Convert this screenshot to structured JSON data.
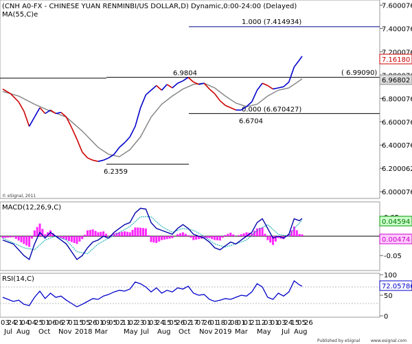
{
  "chart_data": [
    {
      "type": "line",
      "panel": "price",
      "title": "(CNH A0-FX - CHINESE YUAN RENMINBI/US DOLLAR,D) Dynamic,0:00-24:00 (Delayed)",
      "ma_label": "MA(55,C)e",
      "watermark": "© eSignal, 2011",
      "y_ticks": [
        "7.600076",
        "7.400076",
        "7.200076",
        "7.000076",
        "6.800076",
        "6.600076",
        "6.400076",
        "6.200062",
        "6.000076"
      ],
      "ylim": [
        5.96,
        7.62
      ],
      "current_price": "7.16180",
      "current_ma": "6.96802",
      "price_series": [
        {
          "x": 0,
          "y": 6.88
        },
        {
          "x": 3,
          "y": 6.84
        },
        {
          "x": 6,
          "y": 6.77
        },
        {
          "x": 8,
          "y": 6.69
        },
        {
          "x": 10,
          "y": 6.56
        },
        {
          "x": 12,
          "y": 6.64
        },
        {
          "x": 14,
          "y": 6.72
        },
        {
          "x": 16,
          "y": 6.67
        },
        {
          "x": 18,
          "y": 6.7
        },
        {
          "x": 20,
          "y": 6.67
        },
        {
          "x": 22,
          "y": 6.68
        },
        {
          "x": 24,
          "y": 6.64
        },
        {
          "x": 26,
          "y": 6.55
        },
        {
          "x": 28,
          "y": 6.45
        },
        {
          "x": 30,
          "y": 6.34
        },
        {
          "x": 32,
          "y": 6.29
        },
        {
          "x": 34,
          "y": 6.27
        },
        {
          "x": 36,
          "y": 6.26
        },
        {
          "x": 38,
          "y": 6.27
        },
        {
          "x": 40,
          "y": 6.29
        },
        {
          "x": 42,
          "y": 6.32
        },
        {
          "x": 44,
          "y": 6.38
        },
        {
          "x": 46,
          "y": 6.42
        },
        {
          "x": 48,
          "y": 6.47
        },
        {
          "x": 50,
          "y": 6.56
        },
        {
          "x": 52,
          "y": 6.72
        },
        {
          "x": 54,
          "y": 6.83
        },
        {
          "x": 56,
          "y": 6.87
        },
        {
          "x": 58,
          "y": 6.91
        },
        {
          "x": 60,
          "y": 6.87
        },
        {
          "x": 62,
          "y": 6.92
        },
        {
          "x": 64,
          "y": 6.89
        },
        {
          "x": 66,
          "y": 6.93
        },
        {
          "x": 68,
          "y": 6.95
        },
        {
          "x": 70,
          "y": 6.98
        },
        {
          "x": 72,
          "y": 6.94
        },
        {
          "x": 74,
          "y": 6.92
        },
        {
          "x": 76,
          "y": 6.93
        },
        {
          "x": 78,
          "y": 6.88
        },
        {
          "x": 80,
          "y": 6.84
        },
        {
          "x": 82,
          "y": 6.78
        },
        {
          "x": 84,
          "y": 6.74
        },
        {
          "x": 86,
          "y": 6.72
        },
        {
          "x": 88,
          "y": 6.7
        },
        {
          "x": 90,
          "y": 6.7
        },
        {
          "x": 92,
          "y": 6.73
        },
        {
          "x": 94,
          "y": 6.77
        },
        {
          "x": 96,
          "y": 6.87
        },
        {
          "x": 98,
          "y": 6.93
        },
        {
          "x": 100,
          "y": 6.91
        },
        {
          "x": 102,
          "y": 6.88
        },
        {
          "x": 104,
          "y": 6.89
        },
        {
          "x": 106,
          "y": 6.9
        },
        {
          "x": 108,
          "y": 6.94
        },
        {
          "x": 110,
          "y": 7.07
        },
        {
          "x": 112,
          "y": 7.13
        },
        {
          "x": 113,
          "y": 7.1618
        }
      ],
      "ma_series": [
        {
          "x": 0,
          "y": 6.86
        },
        {
          "x": 6,
          "y": 6.82
        },
        {
          "x": 12,
          "y": 6.75
        },
        {
          "x": 18,
          "y": 6.69
        },
        {
          "x": 24,
          "y": 6.64
        },
        {
          "x": 30,
          "y": 6.52
        },
        {
          "x": 36,
          "y": 6.38
        },
        {
          "x": 40,
          "y": 6.32
        },
        {
          "x": 44,
          "y": 6.3
        },
        {
          "x": 48,
          "y": 6.36
        },
        {
          "x": 52,
          "y": 6.47
        },
        {
          "x": 56,
          "y": 6.64
        },
        {
          "x": 60,
          "y": 6.75
        },
        {
          "x": 64,
          "y": 6.82
        },
        {
          "x": 68,
          "y": 6.88
        },
        {
          "x": 72,
          "y": 6.92
        },
        {
          "x": 76,
          "y": 6.93
        },
        {
          "x": 80,
          "y": 6.89
        },
        {
          "x": 84,
          "y": 6.82
        },
        {
          "x": 88,
          "y": 6.76
        },
        {
          "x": 92,
          "y": 6.73
        },
        {
          "x": 96,
          "y": 6.75
        },
        {
          "x": 100,
          "y": 6.82
        },
        {
          "x": 104,
          "y": 6.87
        },
        {
          "x": 108,
          "y": 6.89
        },
        {
          "x": 110,
          "y": 6.92
        },
        {
          "x": 113,
          "y": 6.968
        }
      ],
      "annotations": [
        {
          "text": "1.000 (7.414934)",
          "level": 7.4149,
          "x_from": 72,
          "x_to": 140
        },
        {
          "text": "6.9804",
          "level": 6.9804,
          "x_from": 40,
          "x_to": 140
        },
        {
          "text": "( 6.99090)",
          "level": 6.9909,
          "x_from": 0,
          "x_to": 140
        },
        {
          "text": "0.000 (6.670427)",
          "level": 6.6704,
          "x_from": 72,
          "x_to": 140
        },
        {
          "text": "6.6704",
          "level": 6.6704
        },
        {
          "text": "6.2359",
          "level": 6.2359,
          "x_from": 36,
          "x_to": 72
        }
      ]
    },
    {
      "type": "line",
      "panel": "macd",
      "title": "MACD(12,26,9,C)",
      "y_ticks": [
        "0.05",
        "-0.05"
      ],
      "ylim": [
        -0.085,
        0.085
      ],
      "current_macd": "0.04594",
      "current_hist": "0.00474",
      "macd_series": [
        {
          "x": 0,
          "y": -0.01
        },
        {
          "x": 4,
          "y": -0.02
        },
        {
          "x": 8,
          "y": -0.05
        },
        {
          "x": 10,
          "y": -0.06
        },
        {
          "x": 12,
          "y": -0.02
        },
        {
          "x": 14,
          "y": 0.01
        },
        {
          "x": 16,
          "y": -0.005
        },
        {
          "x": 18,
          "y": 0.01
        },
        {
          "x": 20,
          "y": 0.0
        },
        {
          "x": 22,
          "y": -0.01
        },
        {
          "x": 24,
          "y": -0.02
        },
        {
          "x": 26,
          "y": -0.04
        },
        {
          "x": 28,
          "y": -0.06
        },
        {
          "x": 30,
          "y": -0.05
        },
        {
          "x": 32,
          "y": -0.03
        },
        {
          "x": 34,
          "y": -0.015
        },
        {
          "x": 36,
          "y": -0.01
        },
        {
          "x": 38,
          "y": 0.0
        },
        {
          "x": 40,
          "y": -0.005
        },
        {
          "x": 42,
          "y": 0.01
        },
        {
          "x": 44,
          "y": 0.02
        },
        {
          "x": 46,
          "y": 0.03
        },
        {
          "x": 48,
          "y": 0.035
        },
        {
          "x": 50,
          "y": 0.06
        },
        {
          "x": 52,
          "y": 0.072
        },
        {
          "x": 54,
          "y": 0.07
        },
        {
          "x": 56,
          "y": 0.035
        },
        {
          "x": 58,
          "y": 0.02
        },
        {
          "x": 60,
          "y": 0.015
        },
        {
          "x": 62,
          "y": 0.01
        },
        {
          "x": 64,
          "y": 0.005
        },
        {
          "x": 66,
          "y": 0.02
        },
        {
          "x": 68,
          "y": 0.03
        },
        {
          "x": 70,
          "y": 0.02
        },
        {
          "x": 72,
          "y": 0.005
        },
        {
          "x": 74,
          "y": 0.0
        },
        {
          "x": 76,
          "y": -0.005
        },
        {
          "x": 78,
          "y": -0.015
        },
        {
          "x": 80,
          "y": -0.03
        },
        {
          "x": 82,
          "y": -0.035
        },
        {
          "x": 84,
          "y": -0.025
        },
        {
          "x": 86,
          "y": -0.015
        },
        {
          "x": 88,
          "y": -0.02
        },
        {
          "x": 90,
          "y": -0.01
        },
        {
          "x": 92,
          "y": 0.0
        },
        {
          "x": 94,
          "y": 0.01
        },
        {
          "x": 96,
          "y": 0.035
        },
        {
          "x": 98,
          "y": 0.045
        },
        {
          "x": 100,
          "y": 0.02
        },
        {
          "x": 102,
          "y": -0.005
        },
        {
          "x": 104,
          "y": 0.0
        },
        {
          "x": 106,
          "y": -0.005
        },
        {
          "x": 108,
          "y": 0.005
        },
        {
          "x": 110,
          "y": 0.045
        },
        {
          "x": 112,
          "y": 0.04
        },
        {
          "x": 113,
          "y": 0.04594
        }
      ],
      "signal_series": [
        {
          "x": 0,
          "y": -0.005
        },
        {
          "x": 8,
          "y": -0.03
        },
        {
          "x": 12,
          "y": -0.035
        },
        {
          "x": 16,
          "y": -0.01
        },
        {
          "x": 20,
          "y": 0.0
        },
        {
          "x": 24,
          "y": -0.01
        },
        {
          "x": 28,
          "y": -0.04
        },
        {
          "x": 32,
          "y": -0.045
        },
        {
          "x": 36,
          "y": -0.02
        },
        {
          "x": 40,
          "y": -0.005
        },
        {
          "x": 44,
          "y": 0.01
        },
        {
          "x": 48,
          "y": 0.025
        },
        {
          "x": 52,
          "y": 0.05
        },
        {
          "x": 56,
          "y": 0.05
        },
        {
          "x": 60,
          "y": 0.025
        },
        {
          "x": 64,
          "y": 0.01
        },
        {
          "x": 68,
          "y": 0.02
        },
        {
          "x": 72,
          "y": 0.015
        },
        {
          "x": 76,
          "y": 0.0
        },
        {
          "x": 80,
          "y": -0.02
        },
        {
          "x": 84,
          "y": -0.028
        },
        {
          "x": 88,
          "y": -0.02
        },
        {
          "x": 92,
          "y": -0.01
        },
        {
          "x": 96,
          "y": 0.015
        },
        {
          "x": 100,
          "y": 0.03
        },
        {
          "x": 104,
          "y": 0.005
        },
        {
          "x": 108,
          "y": 0.0
        },
        {
          "x": 110,
          "y": 0.02
        },
        {
          "x": 113,
          "y": 0.0412
        }
      ]
    },
    {
      "type": "line",
      "panel": "rsi",
      "title": "RSI(14,C)",
      "y_ticks": [
        "100",
        "50",
        "0"
      ],
      "ylim": [
        0,
        100
      ],
      "current_rsi": "72.05786",
      "rsi_series": [
        {
          "x": 0,
          "y": 45
        },
        {
          "x": 2,
          "y": 40
        },
        {
          "x": 4,
          "y": 35
        },
        {
          "x": 6,
          "y": 38
        },
        {
          "x": 8,
          "y": 28
        },
        {
          "x": 10,
          "y": 25
        },
        {
          "x": 12,
          "y": 45
        },
        {
          "x": 14,
          "y": 60
        },
        {
          "x": 16,
          "y": 42
        },
        {
          "x": 18,
          "y": 55
        },
        {
          "x": 20,
          "y": 45
        },
        {
          "x": 22,
          "y": 48
        },
        {
          "x": 24,
          "y": 38
        },
        {
          "x": 26,
          "y": 30
        },
        {
          "x": 28,
          "y": 22
        },
        {
          "x": 30,
          "y": 28
        },
        {
          "x": 32,
          "y": 35
        },
        {
          "x": 34,
          "y": 42
        },
        {
          "x": 36,
          "y": 40
        },
        {
          "x": 38,
          "y": 48
        },
        {
          "x": 40,
          "y": 52
        },
        {
          "x": 42,
          "y": 58
        },
        {
          "x": 44,
          "y": 62
        },
        {
          "x": 46,
          "y": 60
        },
        {
          "x": 48,
          "y": 65
        },
        {
          "x": 50,
          "y": 82
        },
        {
          "x": 52,
          "y": 78
        },
        {
          "x": 54,
          "y": 70
        },
        {
          "x": 56,
          "y": 58
        },
        {
          "x": 58,
          "y": 68
        },
        {
          "x": 60,
          "y": 55
        },
        {
          "x": 62,
          "y": 62
        },
        {
          "x": 64,
          "y": 58
        },
        {
          "x": 66,
          "y": 68
        },
        {
          "x": 68,
          "y": 65
        },
        {
          "x": 70,
          "y": 72
        },
        {
          "x": 72,
          "y": 55
        },
        {
          "x": 74,
          "y": 50
        },
        {
          "x": 76,
          "y": 52
        },
        {
          "x": 78,
          "y": 40
        },
        {
          "x": 80,
          "y": 35
        },
        {
          "x": 82,
          "y": 38
        },
        {
          "x": 84,
          "y": 42
        },
        {
          "x": 86,
          "y": 40
        },
        {
          "x": 88,
          "y": 45
        },
        {
          "x": 90,
          "y": 50
        },
        {
          "x": 92,
          "y": 48
        },
        {
          "x": 94,
          "y": 58
        },
        {
          "x": 96,
          "y": 78
        },
        {
          "x": 98,
          "y": 70
        },
        {
          "x": 100,
          "y": 45
        },
        {
          "x": 102,
          "y": 40
        },
        {
          "x": 104,
          "y": 55
        },
        {
          "x": 106,
          "y": 48
        },
        {
          "x": 108,
          "y": 58
        },
        {
          "x": 110,
          "y": 85
        },
        {
          "x": 112,
          "y": 75
        },
        {
          "x": 113,
          "y": 72.06
        }
      ]
    }
  ],
  "x_axis": {
    "row1": [
      "03",
      "24",
      "21",
      "04",
      "04",
      "25",
      "01",
      "06",
      "06",
      "27",
      "01",
      "15",
      "05",
      "26",
      "01",
      "09",
      "05",
      "02",
      "11",
      "02",
      "23",
      "01",
      "03",
      "24",
      "15",
      "05",
      "26",
      "02",
      "17",
      "07",
      "26",
      "01",
      "18",
      "02",
      "08",
      "01",
      "01",
      "21",
      "12",
      "03",
      "01",
      "03",
      "24",
      "15",
      "05",
      "26"
    ],
    "row2": [
      "Jul",
      "Aug",
      "Oct",
      "Nov",
      "2018",
      "Mar",
      "May",
      "Jul",
      "Aug",
      "Oct",
      "Nov",
      "2019",
      "Mar",
      "May",
      "Jul",
      "Aug"
    ]
  },
  "footer": {
    "publisher": "Published by eSignal",
    "brand": "eSignal",
    "url": "www.esignal.com"
  },
  "colors": {
    "price_up": "#0000cc",
    "price_down": "#cc0000",
    "ma": "#888888",
    "macd_line": "#0000aa",
    "signal_line": "#00aaaa",
    "histogram": "#ff00ff",
    "rsi": "#0000cc",
    "fib_line": "#000088"
  }
}
